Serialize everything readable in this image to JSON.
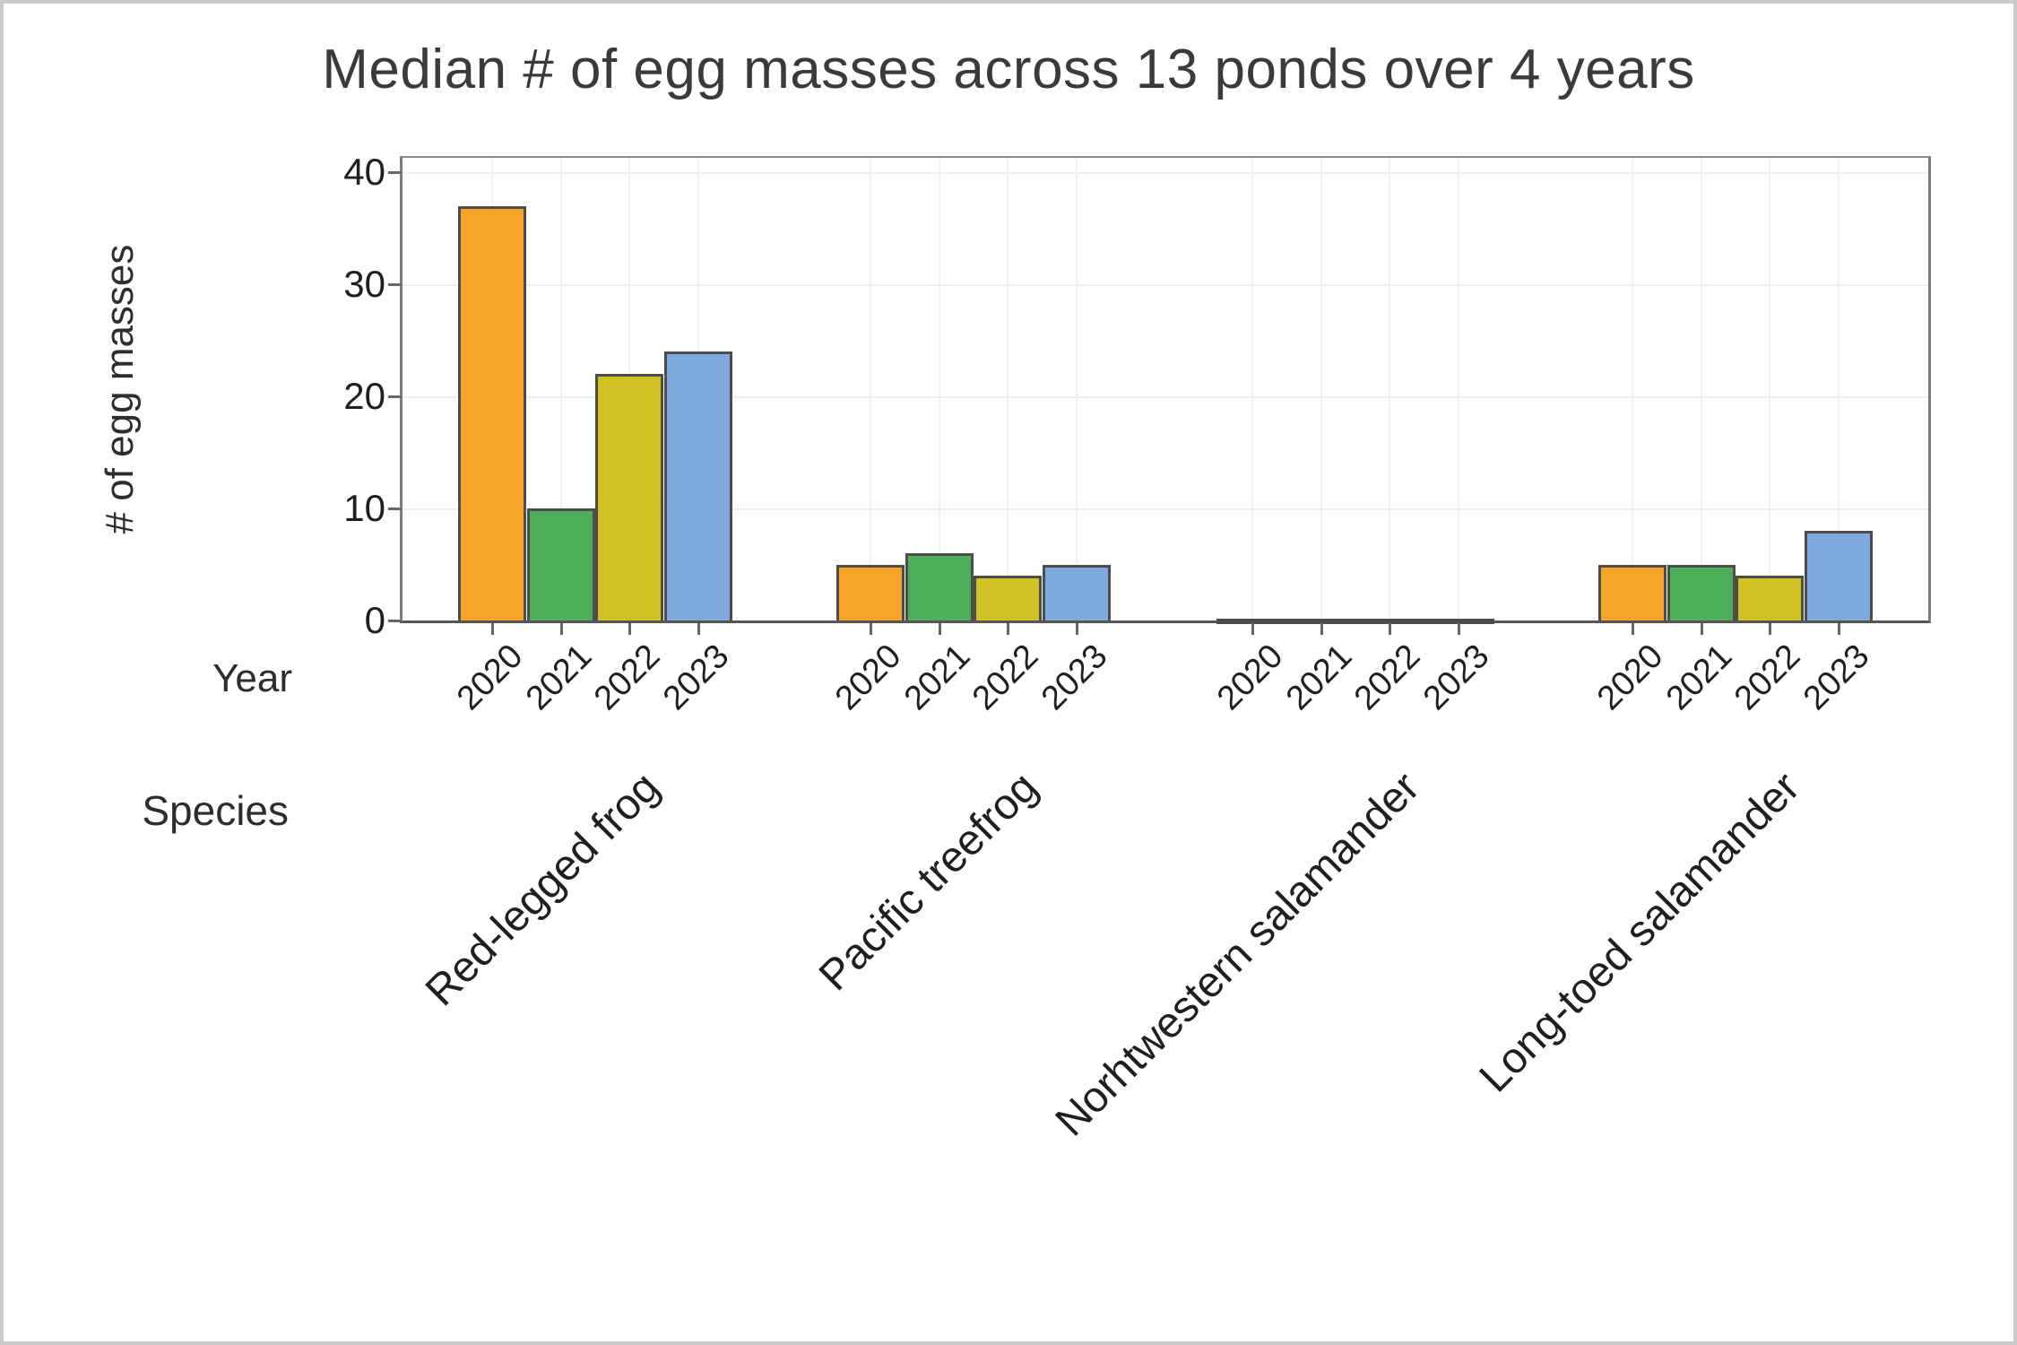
{
  "chart_data": {
    "type": "bar",
    "title": "Median # of egg masses across 13 ponds over 4 years",
    "ylabel": "# of egg masses",
    "xlabel_year": "Year",
    "xlabel_species": "Species",
    "year_categories": [
      "2020",
      "2021",
      "2022",
      "2023"
    ],
    "species_categories": [
      "Red-legged frog",
      "Pacific treefrog",
      "Norhtwestern salamander",
      "Long-toed salamander"
    ],
    "series": [
      {
        "species": "Red-legged frog",
        "values": [
          37,
          10,
          22,
          24
        ]
      },
      {
        "species": "Pacific treefrog",
        "values": [
          5,
          6,
          4,
          5
        ]
      },
      {
        "species": "Norhtwestern salamander",
        "values": [
          0,
          0,
          0,
          0
        ]
      },
      {
        "species": "Long-toed salamander",
        "values": [
          5,
          5,
          4,
          8
        ]
      }
    ],
    "yticks": [
      0,
      10,
      20,
      30,
      40
    ],
    "ylim": [
      0,
      41.3
    ],
    "grid": true,
    "legend_position": "none",
    "year_colors": {
      "2020": "#F7A42A",
      "2021": "#4FAE5A",
      "2022": "#D2C122",
      "2023": "#7FA9DC"
    },
    "bar_outline_color": "#4d4d4d",
    "axis_color": "#555555",
    "text_color": "#2d2d2d"
  }
}
